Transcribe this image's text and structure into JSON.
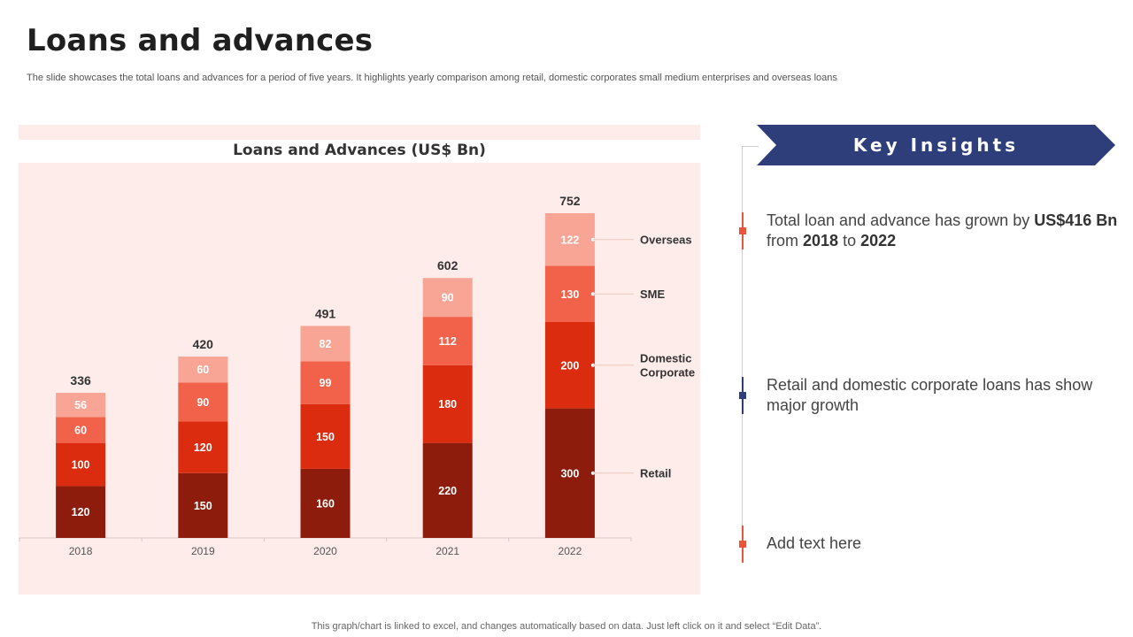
{
  "page": {
    "title": "Loans and advances",
    "subtitle": "The slide showcases the total loans and advances for a period of five years. It highlights yearly comparison among retail, domestic corporates small medium enterprises and overseas loans",
    "footer": "This graph/chart is linked to excel, and changes automatically based on data. Just left click on it and select “Edit Data”."
  },
  "insights": {
    "title": "Key Insights",
    "items": [
      {
        "marker_color": "#e8553b",
        "parts": [
          "Total loan and advance has grown by ",
          "US$416 Bn",
          " from ",
          "2018",
          " to ",
          "2022"
        ]
      },
      {
        "marker_color": "#2e3e7a",
        "text": "Retail and domestic corporate loans has show major growth"
      },
      {
        "marker_color": "#e8553b",
        "text": "Add text here"
      }
    ]
  },
  "colors": {
    "retail": "#8e1c0c",
    "domestic": "#dc2c0f",
    "sme": "#f2614a",
    "overseas": "#f8a595",
    "banner": "#2e3e7a",
    "panel": "#fdecea"
  },
  "chart_data": {
    "type": "bar",
    "stacked": true,
    "title": "Loans and Advances (US$ Bn)",
    "categories": [
      "2018",
      "2019",
      "2020",
      "2021",
      "2022"
    ],
    "series": [
      {
        "name": "Retail",
        "values": [
          120,
          150,
          160,
          220,
          300
        ],
        "color": "#8e1c0c"
      },
      {
        "name": "Domestic Corporate",
        "values": [
          100,
          120,
          150,
          180,
          200
        ],
        "color": "#dc2c0f"
      },
      {
        "name": "SME",
        "values": [
          60,
          90,
          99,
          112,
          130
        ],
        "color": "#f2614a"
      },
      {
        "name": "Overseas",
        "values": [
          56,
          60,
          82,
          90,
          122
        ],
        "color": "#f8a595"
      }
    ],
    "totals": [
      336,
      420,
      491,
      602,
      752
    ],
    "legend_labels": [
      "Overseas",
      "SME",
      "Domestic",
      "Corporate",
      "Retail"
    ],
    "ylim": [
      0,
      760
    ],
    "xlabel": "",
    "ylabel": ""
  }
}
